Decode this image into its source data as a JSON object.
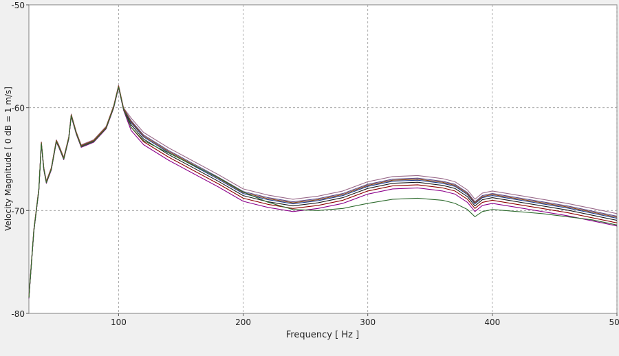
{
  "chart_data": {
    "type": "line",
    "title": "",
    "xlabel": "Frequency [ Hz ]",
    "ylabel": "Velocity Magnitude [ 0 dB = 1 m/s]",
    "xlim": [
      28,
      500
    ],
    "ylim": [
      -80,
      -50
    ],
    "x_ticks": [
      100,
      200,
      300,
      400,
      500
    ],
    "y_ticks": [
      -50,
      -60,
      -70,
      -80
    ],
    "grid": true,
    "legend": "none",
    "series": [
      {
        "color": "#8b0000",
        "offset": 0.0,
        "x": [
          28,
          32,
          36,
          38,
          40,
          42,
          46,
          50,
          52,
          56,
          60,
          62,
          66,
          70,
          80,
          90,
          96,
          100,
          104,
          110,
          120,
          140,
          160,
          180,
          200,
          220,
          240,
          260,
          280,
          300,
          320,
          340,
          360,
          370,
          380,
          386,
          392,
          400,
          420,
          440,
          460,
          480,
          500
        ],
        "y": [
          -78.5,
          -72,
          -68,
          -63.5,
          -66,
          -67.3,
          -66,
          -63.3,
          -63.8,
          -65,
          -63,
          -60.8,
          -62.5,
          -63.8,
          -63.3,
          -62,
          -60,
          -58,
          -60.2,
          -61.9,
          -63.3,
          -64.8,
          -66.1,
          -67.4,
          -68.8,
          -69.4,
          -69.8,
          -69.5,
          -69,
          -68.1,
          -67.6,
          -67.5,
          -67.8,
          -68.1,
          -68.9,
          -69.8,
          -69.2,
          -69,
          -69.4,
          -69.8,
          -70.2,
          -70.7,
          -71.2
        ]
      },
      {
        "color": "#1a1a1a",
        "offset": 0.25,
        "x": [
          28,
          32,
          36,
          38,
          40,
          42,
          46,
          50,
          52,
          56,
          60,
          62,
          66,
          70,
          80,
          90,
          96,
          100,
          104,
          110,
          120,
          140,
          160,
          180,
          200,
          220,
          240,
          260,
          280,
          300,
          320,
          340,
          360,
          370,
          380,
          386,
          392,
          400,
          420,
          440,
          460,
          480,
          500
        ],
        "y": [
          -78.5,
          -72,
          -68,
          -63.5,
          -66,
          -67.3,
          -66,
          -63.3,
          -63.8,
          -65,
          -63,
          -60.8,
          -62.5,
          -63.8,
          -63.3,
          -62,
          -60,
          -58,
          -60.2,
          -61.9,
          -63.3,
          -64.8,
          -66.1,
          -67.4,
          -68.8,
          -69.4,
          -69.8,
          -69.5,
          -69,
          -68.1,
          -67.6,
          -67.5,
          -67.8,
          -68.1,
          -68.9,
          -69.8,
          -69.2,
          -69,
          -69.4,
          -69.8,
          -70.2,
          -70.7,
          -71.2
        ]
      },
      {
        "color": "#8b008b",
        "offset": -0.3,
        "x": [
          28,
          32,
          36,
          38,
          40,
          42,
          46,
          50,
          52,
          56,
          60,
          62,
          66,
          70,
          80,
          90,
          96,
          100,
          104,
          110,
          120,
          140,
          160,
          180,
          200,
          220,
          240,
          260,
          280,
          300,
          320,
          340,
          360,
          370,
          380,
          386,
          392,
          400,
          420,
          440,
          460,
          480,
          500
        ],
        "y": [
          -78.5,
          -72,
          -68,
          -63.5,
          -66,
          -67.3,
          -66,
          -63.3,
          -63.8,
          -65,
          -63,
          -60.8,
          -62.5,
          -63.8,
          -63.3,
          -62,
          -60,
          -58,
          -60.2,
          -61.9,
          -63.3,
          -64.8,
          -66.1,
          -67.4,
          -68.8,
          -69.4,
          -69.8,
          -69.5,
          -69,
          -68.1,
          -67.6,
          -67.5,
          -67.8,
          -68.1,
          -68.9,
          -69.8,
          -69.2,
          -69,
          -69.4,
          -69.8,
          -70.2,
          -70.7,
          -71.2
        ]
      },
      {
        "color": "#1e3c8c",
        "offset": 0.45,
        "x": [
          28,
          32,
          36,
          38,
          40,
          42,
          46,
          50,
          52,
          56,
          60,
          62,
          66,
          70,
          80,
          90,
          96,
          100,
          104,
          110,
          120,
          140,
          160,
          180,
          200,
          220,
          240,
          260,
          280,
          300,
          320,
          340,
          360,
          370,
          380,
          386,
          392,
          400,
          420,
          440,
          460,
          480,
          500
        ],
        "y": [
          -78.5,
          -72,
          -68,
          -63.5,
          -66,
          -67.3,
          -66,
          -63.3,
          -63.8,
          -65,
          -63,
          -60.8,
          -62.5,
          -63.8,
          -63.3,
          -62,
          -60,
          -58,
          -60.2,
          -61.9,
          -63.3,
          -64.8,
          -66.1,
          -67.4,
          -68.8,
          -69.4,
          -69.8,
          -69.5,
          -69,
          -68.1,
          -67.6,
          -67.5,
          -67.8,
          -68.1,
          -68.9,
          -69.8,
          -69.2,
          -69,
          -69.4,
          -69.8,
          -70.2,
          -70.7,
          -71.2
        ]
      },
      {
        "color": "#5a4a8a",
        "offset": 0.65,
        "x": [
          28,
          32,
          36,
          38,
          40,
          42,
          46,
          50,
          52,
          56,
          60,
          62,
          66,
          70,
          80,
          90,
          96,
          100,
          104,
          110,
          120,
          140,
          160,
          180,
          200,
          220,
          240,
          260,
          280,
          300,
          320,
          340,
          360,
          370,
          380,
          386,
          392,
          400,
          420,
          440,
          460,
          480,
          500
        ],
        "y": [
          -78.5,
          -72,
          -68,
          -63.5,
          -66,
          -67.3,
          -66,
          -63.3,
          -63.8,
          -65,
          -63,
          -60.8,
          -62.5,
          -63.8,
          -63.3,
          -62,
          -60,
          -58,
          -60.2,
          -61.9,
          -63.3,
          -64.8,
          -66.1,
          -67.4,
          -68.8,
          -69.4,
          -69.8,
          -69.5,
          -69,
          -68.1,
          -67.6,
          -67.5,
          -67.8,
          -68.1,
          -68.9,
          -69.8,
          -69.2,
          -69,
          -69.4,
          -69.8,
          -70.2,
          -70.7,
          -71.2
        ]
      },
      {
        "color": "#9a6a8a",
        "offset": 0.9,
        "x": [
          28,
          32,
          36,
          38,
          40,
          42,
          46,
          50,
          52,
          56,
          60,
          62,
          66,
          70,
          80,
          90,
          96,
          100,
          104,
          110,
          120,
          140,
          160,
          180,
          200,
          220,
          240,
          260,
          280,
          300,
          320,
          340,
          360,
          370,
          380,
          386,
          392,
          400,
          420,
          440,
          460,
          480,
          500
        ],
        "y": [
          -78.5,
          -72,
          -68,
          -63.5,
          -66,
          -67.3,
          -66,
          -63.3,
          -63.8,
          -65,
          -63,
          -60.8,
          -62.5,
          -63.8,
          -63.3,
          -62,
          -60,
          -58,
          -60.2,
          -61.9,
          -63.3,
          -64.8,
          -66.1,
          -67.4,
          -68.8,
          -69.4,
          -69.8,
          -69.5,
          -69,
          -68.1,
          -67.6,
          -67.5,
          -67.8,
          -68.1,
          -68.9,
          -69.8,
          -69.2,
          -69,
          -69.4,
          -69.8,
          -70.2,
          -70.7,
          -71.2
        ]
      },
      {
        "color": "#8b4513",
        "offset": 0.55,
        "x": [
          28,
          32,
          36,
          38,
          40,
          42,
          46,
          50,
          52,
          56,
          60,
          62,
          66,
          70,
          80,
          90,
          96,
          100,
          104,
          110,
          120,
          140,
          160,
          180,
          200,
          220,
          240,
          260,
          280,
          300,
          320,
          340,
          360,
          370,
          380,
          386,
          392,
          400,
          420,
          440,
          460,
          480,
          500
        ],
        "y": [
          -78.5,
          -72,
          -68,
          -63.5,
          -66,
          -67.3,
          -66,
          -63.3,
          -63.8,
          -65,
          -63,
          -60.8,
          -62.5,
          -63.8,
          -63.3,
          -62,
          -60,
          -58,
          -60.2,
          -61.9,
          -63.3,
          -64.8,
          -66.1,
          -67.4,
          -68.8,
          -69.4,
          -69.8,
          -69.5,
          -69,
          -68.1,
          -67.6,
          -67.5,
          -67.8,
          -68.1,
          -68.9,
          -69.8,
          -69.2,
          -69,
          -69.4,
          -69.8,
          -70.2,
          -70.7,
          -71.2
        ]
      },
      {
        "color": "#2e6b2e",
        "offset": 0.0,
        "x": [
          28,
          32,
          36,
          38,
          40,
          42,
          46,
          50,
          52,
          56,
          60,
          62,
          66,
          70,
          80,
          90,
          96,
          100,
          104,
          110,
          120,
          140,
          160,
          180,
          200,
          220,
          240,
          260,
          280,
          300,
          320,
          340,
          360,
          370,
          380,
          386,
          392,
          400,
          420,
          440,
          460,
          480,
          500
        ],
        "y": [
          -78.5,
          -72,
          -68,
          -63.5,
          -66,
          -67.3,
          -66,
          -63.3,
          -63.8,
          -65,
          -63,
          -60.8,
          -62.5,
          -63.8,
          -63.3,
          -62,
          -60,
          -58,
          -60.2,
          -61.9,
          -63.2,
          -64.4,
          -65.6,
          -66.8,
          -68.2,
          -69.2,
          -69.9,
          -70,
          -69.8,
          -69.3,
          -68.9,
          -68.8,
          -69,
          -69.3,
          -69.9,
          -70.6,
          -70.1,
          -69.9,
          -70.1,
          -70.3,
          -70.6,
          -70.9,
          -71.4
        ]
      }
    ]
  }
}
